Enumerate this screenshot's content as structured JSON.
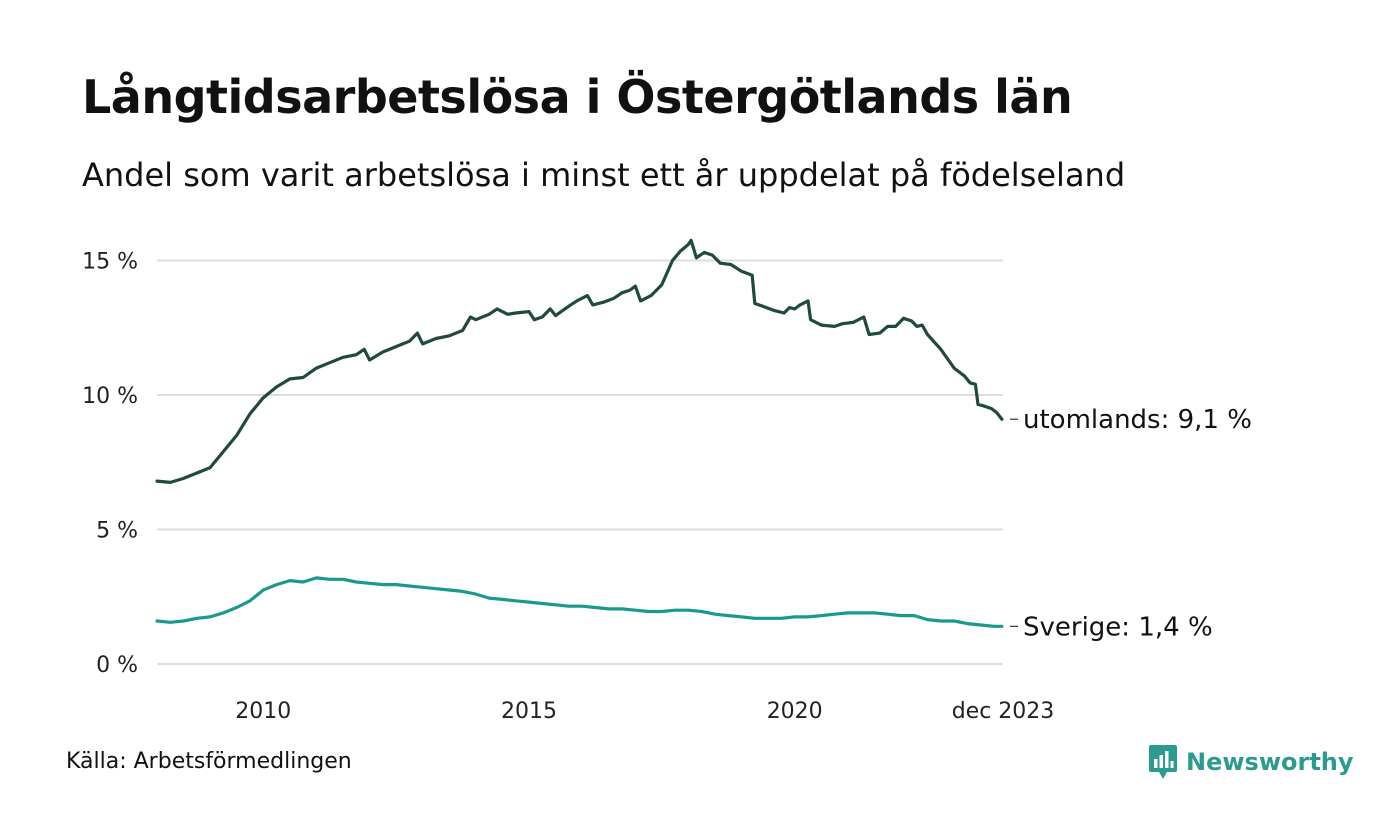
{
  "title": "Långtidsarbetslösa i Östergötlands län",
  "subtitle": "Andel som varit arbetslösa i minst ett år uppdelat på födelseland",
  "source": "Källa: Arbetsförmedlingen",
  "brand": {
    "name": "Newsworthy",
    "color": "#2b9b8f",
    "icon": "bar-chart-speech-bubble-icon"
  },
  "chart_data": {
    "type": "line",
    "title": "Långtidsarbetslösa i Östergötlands län",
    "ylim": [
      0,
      15.8
    ],
    "xlim": [
      2008.0,
      2023.92
    ],
    "grid": true,
    "y_ticks": [
      {
        "value": 0,
        "label": "0 %"
      },
      {
        "value": 5,
        "label": "5 %"
      },
      {
        "value": 10,
        "label": "10 %"
      },
      {
        "value": 15,
        "label": "15 %"
      }
    ],
    "x_ticks": [
      {
        "value": 2010,
        "label": "2010"
      },
      {
        "value": 2015,
        "label": "2015"
      },
      {
        "value": 2020,
        "label": "2020"
      },
      {
        "value": 2023.92,
        "label": "dec 2023"
      }
    ],
    "series": [
      {
        "name": "utomlands",
        "end_label": "utomlands: 9,1 %",
        "color": "#1f4a40",
        "points": [
          [
            2008.0,
            6.8
          ],
          [
            2008.25,
            6.75
          ],
          [
            2008.5,
            6.9
          ],
          [
            2008.75,
            7.1
          ],
          [
            2009.0,
            7.3
          ],
          [
            2009.25,
            7.9
          ],
          [
            2009.5,
            8.5
          ],
          [
            2009.75,
            9.3
          ],
          [
            2010.0,
            9.9
          ],
          [
            2010.25,
            10.3
          ],
          [
            2010.5,
            10.6
          ],
          [
            2010.75,
            10.65
          ],
          [
            2011.0,
            11.0
          ],
          [
            2011.25,
            11.2
          ],
          [
            2011.5,
            11.4
          ],
          [
            2011.75,
            11.5
          ],
          [
            2011.9,
            11.7
          ],
          [
            2012.0,
            11.3
          ],
          [
            2012.25,
            11.6
          ],
          [
            2012.5,
            11.8
          ],
          [
            2012.75,
            12.0
          ],
          [
            2012.9,
            12.3
          ],
          [
            2013.0,
            11.9
          ],
          [
            2013.25,
            12.1
          ],
          [
            2013.5,
            12.2
          ],
          [
            2013.75,
            12.4
          ],
          [
            2013.9,
            12.9
          ],
          [
            2014.0,
            12.8
          ],
          [
            2014.25,
            13.0
          ],
          [
            2014.4,
            13.2
          ],
          [
            2014.6,
            13.0
          ],
          [
            2014.75,
            13.05
          ],
          [
            2015.0,
            13.1
          ],
          [
            2015.1,
            12.8
          ],
          [
            2015.25,
            12.9
          ],
          [
            2015.4,
            13.2
          ],
          [
            2015.5,
            12.95
          ],
          [
            2015.75,
            13.3
          ],
          [
            2015.9,
            13.5
          ],
          [
            2016.1,
            13.7
          ],
          [
            2016.2,
            13.35
          ],
          [
            2016.4,
            13.45
          ],
          [
            2016.6,
            13.6
          ],
          [
            2016.75,
            13.8
          ],
          [
            2016.9,
            13.9
          ],
          [
            2017.0,
            14.05
          ],
          [
            2017.1,
            13.5
          ],
          [
            2017.3,
            13.7
          ],
          [
            2017.5,
            14.1
          ],
          [
            2017.7,
            15.0
          ],
          [
            2017.85,
            15.35
          ],
          [
            2018.0,
            15.6
          ],
          [
            2018.05,
            15.75
          ],
          [
            2018.15,
            15.1
          ],
          [
            2018.3,
            15.3
          ],
          [
            2018.45,
            15.2
          ],
          [
            2018.6,
            14.9
          ],
          [
            2018.8,
            14.85
          ],
          [
            2019.0,
            14.6
          ],
          [
            2019.2,
            14.45
          ],
          [
            2019.25,
            13.4
          ],
          [
            2019.4,
            13.3
          ],
          [
            2019.6,
            13.15
          ],
          [
            2019.8,
            13.05
          ],
          [
            2019.9,
            13.25
          ],
          [
            2020.0,
            13.2
          ],
          [
            2020.1,
            13.35
          ],
          [
            2020.25,
            13.5
          ],
          [
            2020.3,
            12.8
          ],
          [
            2020.5,
            12.6
          ],
          [
            2020.75,
            12.55
          ],
          [
            2020.9,
            12.65
          ],
          [
            2021.1,
            12.7
          ],
          [
            2021.3,
            12.9
          ],
          [
            2021.4,
            12.25
          ],
          [
            2021.6,
            12.3
          ],
          [
            2021.75,
            12.55
          ],
          [
            2021.9,
            12.55
          ],
          [
            2022.05,
            12.85
          ],
          [
            2022.2,
            12.75
          ],
          [
            2022.3,
            12.55
          ],
          [
            2022.4,
            12.6
          ],
          [
            2022.5,
            12.25
          ],
          [
            2022.75,
            11.7
          ],
          [
            2023.0,
            11.0
          ],
          [
            2023.2,
            10.7
          ],
          [
            2023.3,
            10.45
          ],
          [
            2023.4,
            10.4
          ],
          [
            2023.45,
            9.65
          ],
          [
            2023.55,
            9.6
          ],
          [
            2023.7,
            9.5
          ],
          [
            2023.8,
            9.35
          ],
          [
            2023.9,
            9.1
          ]
        ]
      },
      {
        "name": "Sverige",
        "end_label": "Sverige: 1,4 %",
        "color": "#1a9a8c",
        "points": [
          [
            2008.0,
            1.6
          ],
          [
            2008.25,
            1.55
          ],
          [
            2008.5,
            1.6
          ],
          [
            2008.75,
            1.7
          ],
          [
            2009.0,
            1.75
          ],
          [
            2009.25,
            1.9
          ],
          [
            2009.5,
            2.1
          ],
          [
            2009.75,
            2.35
          ],
          [
            2010.0,
            2.75
          ],
          [
            2010.25,
            2.95
          ],
          [
            2010.5,
            3.1
          ],
          [
            2010.75,
            3.05
          ],
          [
            2011.0,
            3.2
          ],
          [
            2011.25,
            3.15
          ],
          [
            2011.5,
            3.15
          ],
          [
            2011.75,
            3.05
          ],
          [
            2012.0,
            3.0
          ],
          [
            2012.25,
            2.95
          ],
          [
            2012.5,
            2.95
          ],
          [
            2012.75,
            2.9
          ],
          [
            2013.0,
            2.85
          ],
          [
            2013.25,
            2.8
          ],
          [
            2013.5,
            2.75
          ],
          [
            2013.75,
            2.7
          ],
          [
            2014.0,
            2.6
          ],
          [
            2014.25,
            2.45
          ],
          [
            2014.5,
            2.4
          ],
          [
            2014.75,
            2.35
          ],
          [
            2015.0,
            2.3
          ],
          [
            2015.25,
            2.25
          ],
          [
            2015.5,
            2.2
          ],
          [
            2015.75,
            2.15
          ],
          [
            2016.0,
            2.15
          ],
          [
            2016.25,
            2.1
          ],
          [
            2016.5,
            2.05
          ],
          [
            2016.75,
            2.05
          ],
          [
            2017.0,
            2.0
          ],
          [
            2017.25,
            1.95
          ],
          [
            2017.5,
            1.95
          ],
          [
            2017.75,
            2.0
          ],
          [
            2018.0,
            2.0
          ],
          [
            2018.25,
            1.95
          ],
          [
            2018.5,
            1.85
          ],
          [
            2018.75,
            1.8
          ],
          [
            2019.0,
            1.75
          ],
          [
            2019.25,
            1.7
          ],
          [
            2019.5,
            1.7
          ],
          [
            2019.75,
            1.7
          ],
          [
            2020.0,
            1.75
          ],
          [
            2020.25,
            1.75
          ],
          [
            2020.5,
            1.8
          ],
          [
            2020.75,
            1.85
          ],
          [
            2021.0,
            1.9
          ],
          [
            2021.25,
            1.9
          ],
          [
            2021.5,
            1.9
          ],
          [
            2021.75,
            1.85
          ],
          [
            2022.0,
            1.8
          ],
          [
            2022.25,
            1.8
          ],
          [
            2022.5,
            1.65
          ],
          [
            2022.75,
            1.6
          ],
          [
            2023.0,
            1.6
          ],
          [
            2023.25,
            1.5
          ],
          [
            2023.5,
            1.45
          ],
          [
            2023.75,
            1.4
          ],
          [
            2023.9,
            1.4
          ]
        ]
      }
    ]
  }
}
